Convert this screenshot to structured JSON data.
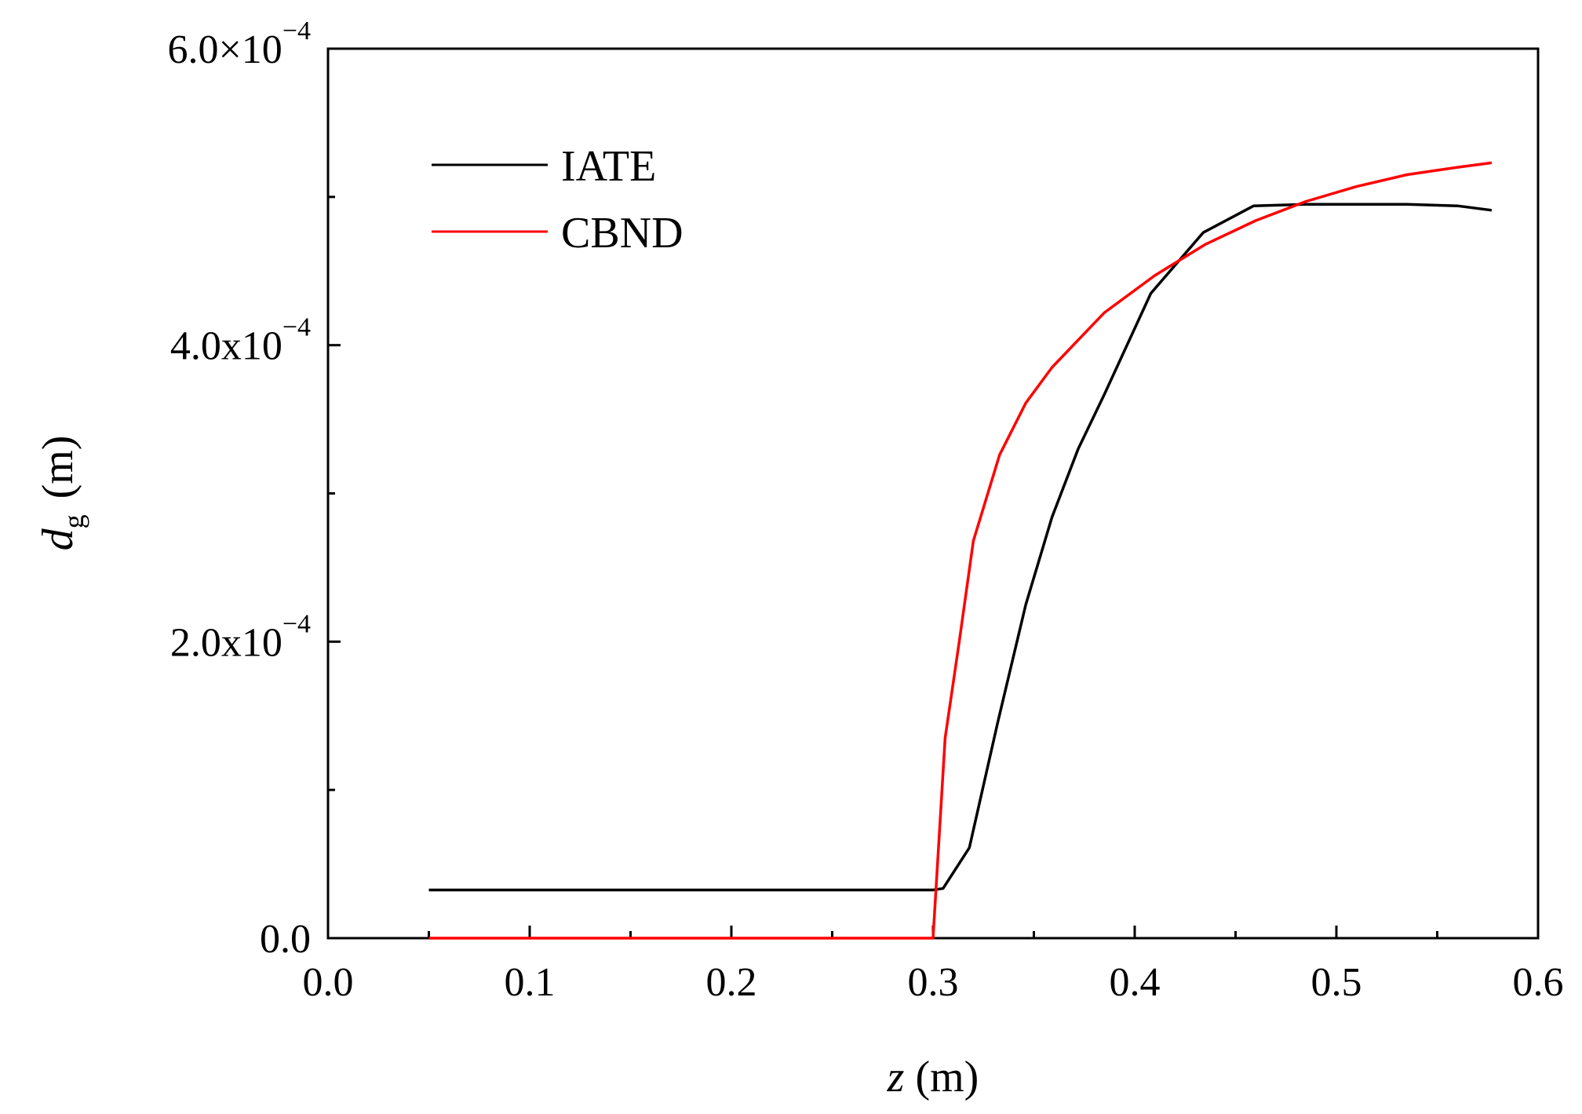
{
  "chart_data": {
    "type": "line",
    "title": "",
    "xlabel": {
      "var": "z",
      "unit": "(m)"
    },
    "ylabel": {
      "var": "d",
      "sub": "g",
      "unit": "(m)"
    },
    "xlim": [
      0.0,
      0.6
    ],
    "ylim": [
      0.0,
      0.0006
    ],
    "x_ticks": [
      {
        "value": 0.0,
        "label": "0.0"
      },
      {
        "value": 0.1,
        "label": "0.1"
      },
      {
        "value": 0.2,
        "label": "0.2"
      },
      {
        "value": 0.3,
        "label": "0.3"
      },
      {
        "value": 0.4,
        "label": "0.4"
      },
      {
        "value": 0.5,
        "label": "0.5"
      },
      {
        "value": 0.6,
        "label": "0.6"
      }
    ],
    "x_minor_ticks": [
      0.05,
      0.15,
      0.25,
      0.35,
      0.45,
      0.55
    ],
    "y_ticks": [
      {
        "value": 0.0,
        "mantissa": "0.0",
        "exponent": ""
      },
      {
        "value": 0.0002,
        "mantissa": "2.0x10",
        "exponent": "−4"
      },
      {
        "value": 0.0004,
        "mantissa": "4.0x10",
        "exponent": "−4"
      },
      {
        "value": 0.0006,
        "mantissa": "6.0×10",
        "exponent": "−4"
      }
    ],
    "y_minor_ticks": [
      0.0001,
      0.0003,
      0.0005
    ],
    "grid": false,
    "legend_position": "top-left",
    "series": [
      {
        "name": "IATE",
        "color": "#000000",
        "x": [
          0.05,
          0.1,
          0.2,
          0.3,
          0.305,
          0.318,
          0.332,
          0.346,
          0.359,
          0.372,
          0.385,
          0.408,
          0.434,
          0.459,
          0.485,
          0.51,
          0.535,
          0.56,
          0.577
        ],
        "y": [
          3.25e-05,
          3.25e-05,
          3.25e-05,
          3.25e-05,
          3.35e-05,
          6.1e-05,
          0.000145,
          0.000225,
          0.000284,
          0.00033,
          0.000367,
          0.000435,
          0.000476,
          0.000494,
          0.000495,
          0.000495,
          0.000495,
          0.000494,
          0.000491
        ]
      },
      {
        "name": "CBND",
        "color": "#ff0000",
        "x": [
          0.05,
          0.15,
          0.25,
          0.3,
          0.306,
          0.313,
          0.32,
          0.333,
          0.346,
          0.359,
          0.385,
          0.41,
          0.435,
          0.46,
          0.485,
          0.51,
          0.535,
          0.56,
          0.577
        ],
        "y": [
          0.0,
          0.0,
          0.0,
          0.0,
          0.000135,
          0.0002,
          0.000268,
          0.000326,
          0.000361,
          0.000385,
          0.000422,
          0.000447,
          0.000468,
          0.000484,
          0.000497,
          0.000507,
          0.000515,
          0.00052,
          0.000523
        ]
      }
    ]
  }
}
